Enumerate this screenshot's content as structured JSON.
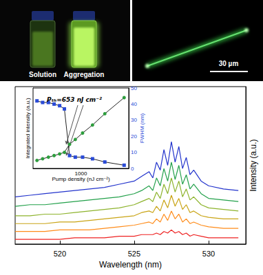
{
  "chart_data": [
    {
      "type": "line",
      "x_label": "Wavelength (nm)",
      "y_label": "Intensity (a.u.)",
      "x": [
        517,
        518,
        519,
        520,
        521,
        522,
        523,
        524,
        525,
        525.5,
        526,
        526.25,
        526.5,
        526.75,
        527,
        527.25,
        527.5,
        527.75,
        528,
        528.25,
        528.5,
        528.75,
        529,
        529.5,
        530,
        531,
        532
      ],
      "series": [
        {
          "color": "#ee2222",
          "values": [
            3,
            3,
            3,
            3,
            4,
            4,
            4,
            5,
            5,
            6,
            6,
            6,
            7,
            6,
            8,
            7,
            9,
            7,
            8,
            6,
            7,
            5,
            6,
            5,
            4,
            4,
            4
          ]
        },
        {
          "color": "#ff8c1a",
          "values": [
            8,
            8,
            8,
            9,
            9,
            9,
            10,
            11,
            12,
            13,
            14,
            13,
            16,
            14,
            19,
            15,
            21,
            16,
            19,
            14,
            16,
            13,
            14,
            12,
            11,
            10,
            10
          ]
        },
        {
          "color": "#c9a415",
          "values": [
            13,
            13,
            13,
            14,
            14,
            15,
            16,
            17,
            18,
            20,
            21,
            20,
            24,
            21,
            28,
            23,
            31,
            24,
            29,
            22,
            25,
            20,
            21,
            18,
            17,
            16,
            16
          ]
        },
        {
          "color": "#8db32c",
          "values": [
            18,
            18,
            19,
            19,
            20,
            21,
            22,
            23,
            25,
            27,
            29,
            27,
            33,
            29,
            38,
            32,
            42,
            33,
            40,
            30,
            35,
            28,
            30,
            25,
            23,
            22,
            21
          ]
        },
        {
          "color": "#22a04a",
          "values": [
            24,
            25,
            25,
            26,
            27,
            28,
            29,
            30,
            32,
            34,
            37,
            34,
            42,
            37,
            48,
            40,
            52,
            41,
            50,
            38,
            44,
            35,
            38,
            32,
            29,
            28,
            27
          ]
        },
        {
          "color": "#2233cc",
          "values": [
            30,
            31,
            32,
            33,
            34,
            35,
            36,
            38,
            40,
            43,
            46,
            42,
            52,
            47,
            60,
            50,
            65,
            52,
            62,
            48,
            55,
            44,
            47,
            40,
            37,
            35,
            34
          ]
        }
      ],
      "xlim": [
        517,
        532.5
      ],
      "xticks": [
        520,
        525,
        530
      ],
      "ylim": [
        0,
        100
      ],
      "tick_labels": "x",
      "grid": false
    },
    {
      "type": "line",
      "x_label": "Pump density (nJ cm⁻²)",
      "y_label": "Integrated intensity (a.u.)",
      "y2_label": "FWHM (nm)",
      "log": "x",
      "x": [
        280,
        330,
        390,
        460,
        540,
        620,
        720,
        850,
        1050,
        1400,
        2000,
        3500
      ],
      "series": [
        {
          "color": "#2e9e3e",
          "marker": "circle",
          "line_style": "solid",
          "values": [
            5,
            6,
            7,
            8,
            9,
            10,
            15,
            18,
            22,
            27,
            34,
            44
          ]
        },
        {
          "color": "#2a4bd7",
          "marker": "square",
          "line_style": "solid",
          "axis": "y2",
          "values": [
            42,
            41,
            41,
            40,
            39,
            37,
            8,
            7,
            7,
            6,
            4,
            2
          ]
        }
      ],
      "xlim": [
        250,
        4000
      ],
      "xticks": [
        1000
      ],
      "ylim": [
        0,
        50
      ],
      "y2lim": [
        0,
        50
      ],
      "y2ticks": [
        0,
        10,
        20,
        30,
        40,
        50
      ],
      "annotation": "Pₜₕ=653 nJ cm⁻²",
      "threshold": 653,
      "grid": false
    }
  ],
  "photos": {
    "left": {
      "labels": [
        "Solution",
        "Aggregation"
      ]
    },
    "right": {
      "scale_bar": "30 µm"
    }
  }
}
